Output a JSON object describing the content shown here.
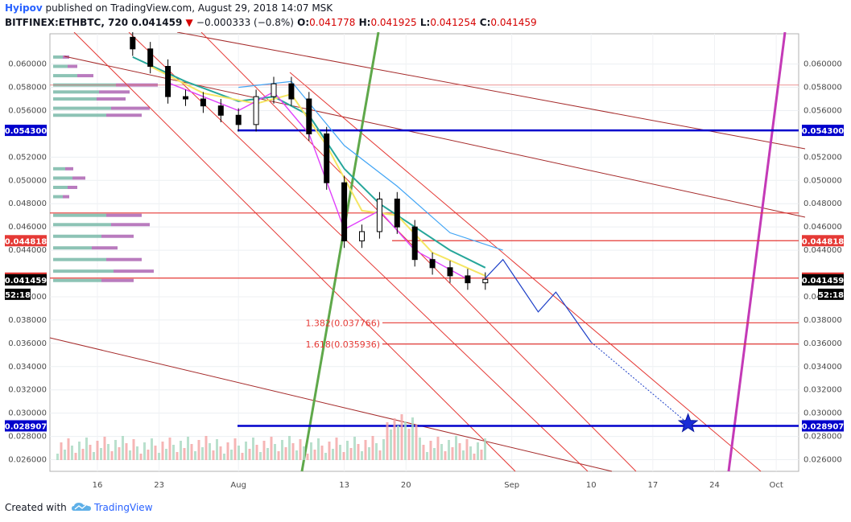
{
  "header": {
    "author": "Hyipov",
    "published_text": " published on TradingView.com, August 29, 2018 14:07 MSK",
    "symbol": "BITFINEX:ETHBTC, 720",
    "last_price": "0.041459",
    "change_arrow": "▼",
    "change": "−0.000333 (−0.8%)",
    "o_label": "O:",
    "o_value": "0.041778",
    "h_label": "H:",
    "h_value": "0.041925",
    "l_label": "L:",
    "l_value": "0.041254",
    "c_label": "C:",
    "c_value": "0.041459"
  },
  "footer": {
    "created_with": "Created with",
    "brand": "TradingView"
  },
  "colors": {
    "up_candle": "#ffffff",
    "down_candle": "#000000",
    "channel": "#e53935",
    "trend_dark": "#a52a2a",
    "green_line": "#5fa84a",
    "purple_line": "#c43ab7",
    "blue_level": "#0000cc",
    "projection": "#1e40c8"
  },
  "chart_data": {
    "type": "candlestick",
    "title": "BITFINEX:ETHBTC, 720",
    "interval": "720",
    "ylim": [
      0.025,
      0.0626
    ],
    "x_tick_labels": [
      "16",
      "23",
      "Aug",
      "13",
      "20",
      "Sep",
      "10",
      "17",
      "24",
      "Oct"
    ],
    "y_tick_labels": [
      "0.026000",
      "0.028000",
      "0.030000",
      "0.032000",
      "0.034000",
      "0.036000",
      "0.038000",
      "0.040000",
      "0.044000",
      "0.046000",
      "0.048000",
      "0.050000",
      "0.052000",
      "0.056000",
      "0.058000",
      "0.060000"
    ],
    "price_tags": [
      {
        "value": 0.0543,
        "label": "0.054300",
        "color": "#0000cc"
      },
      {
        "value": 0.044818,
        "label": "0.044818",
        "color": "#e53935"
      },
      {
        "value": 0.041605,
        "label": "0.041605",
        "color": "#e53935"
      },
      {
        "value": 0.041459,
        "label": "0.041459",
        "color": "#000000"
      },
      {
        "value": 0.028907,
        "label": "0.028907",
        "color": "#0000cc"
      }
    ],
    "countdown": "52:18",
    "horizontal_levels": [
      {
        "value": 0.0543,
        "color": "#0000cc"
      },
      {
        "value": 0.0472,
        "color": "#e53935"
      },
      {
        "value": 0.044818,
        "color": "#e53935"
      },
      {
        "value": 0.041605,
        "color": "#e53935"
      },
      {
        "value": 0.028907,
        "color": "#0000cc"
      },
      {
        "value": 0.0582,
        "color": "#e57373"
      }
    ],
    "fibonacci": [
      {
        "label": "1.382(0.037766)",
        "value": 0.037766
      },
      {
        "label": "1.618(0.035936)",
        "value": 0.035936
      }
    ],
    "candles": [
      {
        "date": "Jul 20",
        "close": 0.0613
      },
      {
        "date": "Jul 22",
        "close": 0.0598
      },
      {
        "date": "Jul 24",
        "close": 0.0572
      },
      {
        "date": "Jul 26",
        "close": 0.057
      },
      {
        "date": "Jul 28",
        "close": 0.0564
      },
      {
        "date": "Jul 30",
        "close": 0.0556
      },
      {
        "date": "Aug 1",
        "close": 0.0548
      },
      {
        "date": "Aug 3",
        "close": 0.0572
      },
      {
        "date": "Aug 5",
        "close": 0.0583
      },
      {
        "date": "Aug 7",
        "close": 0.057
      },
      {
        "date": "Aug 9",
        "close": 0.054
      },
      {
        "date": "Aug 11",
        "close": 0.0498
      },
      {
        "date": "Aug 13",
        "close": 0.0448
      },
      {
        "date": "Aug 15",
        "close": 0.0456
      },
      {
        "date": "Aug 17",
        "close": 0.0484
      },
      {
        "date": "Aug 19",
        "close": 0.046
      },
      {
        "date": "Aug 21",
        "close": 0.0432
      },
      {
        "date": "Aug 23",
        "close": 0.0425
      },
      {
        "date": "Aug 25",
        "close": 0.0418
      },
      {
        "date": "Aug 27",
        "close": 0.0412
      },
      {
        "date": "Aug 29",
        "close": 0.0415
      }
    ],
    "projection_path": [
      {
        "date": "Aug 29",
        "value": 0.0416
      },
      {
        "date": "Aug 31",
        "value": 0.0432
      },
      {
        "date": "Sep 4",
        "value": 0.0387
      },
      {
        "date": "Sep 6",
        "value": 0.0404
      },
      {
        "date": "Sep 10",
        "value": 0.0361
      },
      {
        "date": "Sep 21",
        "value": 0.0291
      }
    ],
    "target_marker": {
      "date": "Sep 21",
      "value": 0.0291
    },
    "legend": "none",
    "grid": true
  }
}
